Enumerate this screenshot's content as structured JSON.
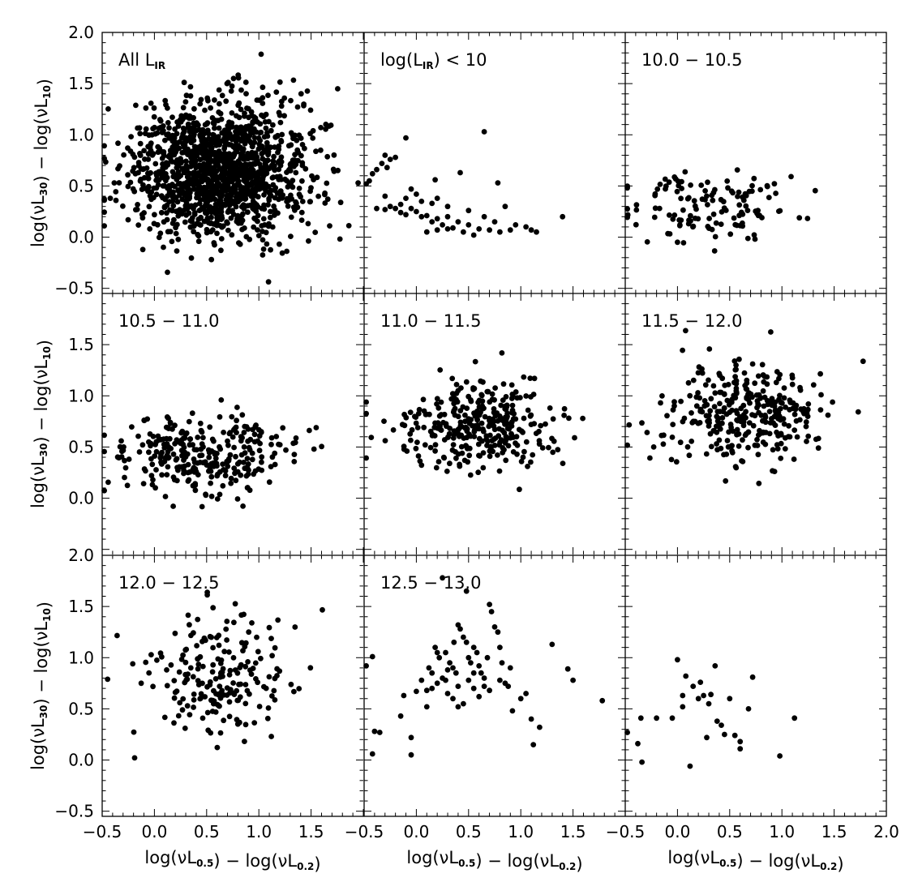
{
  "figure": {
    "xlabel": "log(νL0.5) − log(νL0.2)",
    "ylabel": "log(νL30) − log(νL10)",
    "xlim": [
      -0.5,
      2.0
    ],
    "ylim": [
      -0.55,
      2.0
    ],
    "x_ticks": [
      -0.5,
      0.0,
      0.5,
      1.0,
      1.5,
      2.0
    ],
    "y_ticks": [
      -0.5,
      0.0,
      0.5,
      1.0,
      1.5,
      2.0
    ],
    "x_tick_labels": [
      "−0.5",
      "0.0",
      "0.5",
      "1.0",
      "1.5",
      "2.0"
    ],
    "y_tick_labels": [
      "−0.5",
      "0.0",
      "0.5",
      "1.0",
      "1.5",
      "2.0"
    ],
    "point_color": "#000000"
  },
  "chart_data": [
    {
      "type": "scatter",
      "panel_label": "All L_IR",
      "n_points": 1400,
      "distribution": {
        "x_center": 0.62,
        "x_spread": 0.42,
        "y_center": 0.65,
        "y_spread": 0.33
      }
    },
    {
      "type": "scatter",
      "panel_label": "log(L_IR) < 10",
      "points": [
        [
          -0.45,
          0.55
        ],
        [
          -0.48,
          0.52
        ],
        [
          -0.42,
          0.62
        ],
        [
          -0.38,
          0.66
        ],
        [
          -0.33,
          0.72
        ],
        [
          -0.28,
          0.68
        ],
        [
          -0.25,
          0.76
        ],
        [
          -0.2,
          0.78
        ],
        [
          -0.3,
          0.8
        ],
        [
          -0.1,
          0.97
        ],
        [
          -0.38,
          0.28
        ],
        [
          -0.3,
          0.27
        ],
        [
          -0.25,
          0.3
        ],
        [
          -0.2,
          0.28
        ],
        [
          -0.15,
          0.24
        ],
        [
          -0.1,
          0.22
        ],
        [
          -0.05,
          0.28
        ],
        [
          0.0,
          0.25
        ],
        [
          0.05,
          0.2
        ],
        [
          0.1,
          0.21
        ],
        [
          0.15,
          0.15
        ],
        [
          0.2,
          0.18
        ],
        [
          0.25,
          0.12
        ],
        [
          0.3,
          0.08
        ],
        [
          -0.3,
          0.4
        ],
        [
          -0.15,
          0.32
        ],
        [
          -0.05,
          0.47
        ],
        [
          0.0,
          0.42
        ],
        [
          0.05,
          0.35
        ],
        [
          0.15,
          0.33
        ],
        [
          0.2,
          0.38
        ],
        [
          0.3,
          0.2
        ],
        [
          0.4,
          0.15
        ],
        [
          0.5,
          0.12
        ],
        [
          0.6,
          0.08
        ],
        [
          0.65,
          0.2
        ],
        [
          0.75,
          0.15
        ],
        [
          0.85,
          0.3
        ],
        [
          0.95,
          0.12
        ],
        [
          1.05,
          0.1
        ],
        [
          1.15,
          0.05
        ],
        [
          0.1,
          0.05
        ],
        [
          0.2,
          0.07
        ],
        [
          0.35,
          0.09
        ],
        [
          0.45,
          0.05
        ],
        [
          0.55,
          0.02
        ],
        [
          0.7,
          0.07
        ],
        [
          0.8,
          0.05
        ],
        [
          0.9,
          0.07
        ],
        [
          1.1,
          0.07
        ],
        [
          1.4,
          0.2
        ],
        [
          0.65,
          1.03
        ],
        [
          0.78,
          0.53
        ],
        [
          0.42,
          0.63
        ],
        [
          0.18,
          0.56
        ],
        [
          -0.1,
          0.38
        ],
        [
          0.3,
          0.3
        ],
        [
          0.5,
          0.26
        ]
      ]
    },
    {
      "type": "scatter",
      "panel_label": "10.0 − 10.5",
      "n_points": 130,
      "distribution": {
        "x_center": 0.3,
        "x_spread": 0.38,
        "y_center": 0.32,
        "y_spread": 0.17
      }
    },
    {
      "type": "scatter",
      "panel_label": "10.5 − 11.0",
      "n_points": 300,
      "distribution": {
        "x_center": 0.5,
        "x_spread": 0.42,
        "y_center": 0.45,
        "y_spread": 0.2
      }
    },
    {
      "type": "scatter",
      "panel_label": "11.0 − 11.5",
      "n_points": 330,
      "distribution": {
        "x_center": 0.6,
        "x_spread": 0.38,
        "y_center": 0.7,
        "y_spread": 0.22
      }
    },
    {
      "type": "scatter",
      "panel_label": "11.5 − 12.0",
      "n_points": 320,
      "distribution": {
        "x_center": 0.65,
        "x_spread": 0.38,
        "y_center": 0.82,
        "y_spread": 0.24
      }
    },
    {
      "type": "scatter",
      "panel_label": "12.0 − 12.5",
      "n_points": 200,
      "distribution": {
        "x_center": 0.65,
        "x_spread": 0.35,
        "y_center": 0.82,
        "y_spread": 0.3
      }
    },
    {
      "type": "scatter",
      "panel_label": "12.5 − 13.0",
      "points": [
        [
          -0.48,
          0.92
        ],
        [
          -0.42,
          1.01
        ],
        [
          -0.4,
          0.28
        ],
        [
          -0.35,
          0.27
        ],
        [
          -0.42,
          0.06
        ],
        [
          -0.05,
          0.22
        ],
        [
          -0.05,
          0.05
        ],
        [
          -0.15,
          0.43
        ],
        [
          -0.12,
          0.63
        ],
        [
          0.0,
          0.67
        ],
        [
          0.1,
          0.68
        ],
        [
          0.15,
          0.85
        ],
        [
          0.18,
          1.1
        ],
        [
          0.2,
          1.05
        ],
        [
          0.22,
          1.0
        ],
        [
          0.25,
          0.8
        ],
        [
          0.28,
          0.78
        ],
        [
          0.3,
          0.88
        ],
        [
          0.32,
          0.95
        ],
        [
          0.35,
          0.9
        ],
        [
          0.38,
          0.85
        ],
        [
          0.4,
          1.32
        ],
        [
          0.42,
          1.28
        ],
        [
          0.45,
          1.2
        ],
        [
          0.48,
          1.15
        ],
        [
          0.5,
          1.0
        ],
        [
          0.52,
          0.95
        ],
        [
          0.55,
          1.1
        ],
        [
          0.58,
          1.05
        ],
        [
          0.6,
          0.92
        ],
        [
          0.62,
          0.85
        ],
        [
          0.65,
          0.8
        ],
        [
          0.68,
          1.0
        ],
        [
          0.7,
          1.52
        ],
        [
          0.72,
          1.45
        ],
        [
          0.75,
          1.3
        ],
        [
          0.78,
          1.25
        ],
        [
          0.8,
          1.1
        ],
        [
          0.82,
          0.95
        ],
        [
          0.85,
          0.75
        ],
        [
          0.88,
          0.72
        ],
        [
          0.9,
          0.9
        ],
        [
          0.92,
          0.48
        ],
        [
          1.0,
          0.6
        ],
        [
          1.05,
          0.65
        ],
        [
          1.1,
          0.4
        ],
        [
          1.12,
          0.15
        ],
        [
          1.18,
          0.32
        ],
        [
          1.3,
          1.13
        ],
        [
          1.45,
          0.89
        ],
        [
          1.5,
          0.78
        ],
        [
          1.78,
          0.58
        ],
        [
          0.48,
          1.65
        ],
        [
          0.25,
          1.78
        ],
        [
          0.1,
          0.52
        ],
        [
          0.15,
          0.7
        ],
        [
          0.3,
          0.65
        ],
        [
          0.35,
          0.6
        ],
        [
          0.4,
          0.72
        ],
        [
          0.45,
          0.55
        ],
        [
          0.5,
          0.78
        ],
        [
          0.55,
          0.7
        ],
        [
          0.6,
          0.62
        ],
        [
          0.4,
          0.52
        ],
        [
          0.2,
          0.75
        ],
        [
          0.05,
          0.78
        ],
        [
          0.12,
          0.9
        ],
        [
          0.28,
          1.05
        ],
        [
          0.36,
          1.15
        ],
        [
          0.55,
          0.85
        ],
        [
          0.65,
          0.72
        ],
        [
          0.7,
          0.68
        ],
        [
          0.8,
          0.78
        ]
      ]
    },
    {
      "type": "scatter",
      "panel_label": "",
      "points": [
        [
          -0.48,
          0.27
        ],
        [
          -0.38,
          0.16
        ],
        [
          -0.35,
          0.41
        ],
        [
          -0.34,
          -0.02
        ],
        [
          -0.2,
          0.41
        ],
        [
          -0.05,
          0.41
        ],
        [
          0.0,
          0.98
        ],
        [
          0.05,
          0.52
        ],
        [
          0.05,
          0.63
        ],
        [
          0.08,
          0.82
        ],
        [
          0.12,
          -0.06
        ],
        [
          0.15,
          0.72
        ],
        [
          0.2,
          0.6
        ],
        [
          0.22,
          0.76
        ],
        [
          0.25,
          0.63
        ],
        [
          0.28,
          0.22
        ],
        [
          0.3,
          0.55
        ],
        [
          0.32,
          0.64
        ],
        [
          0.36,
          0.92
        ],
        [
          0.38,
          0.38
        ],
        [
          0.42,
          0.34
        ],
        [
          0.45,
          0.25
        ],
        [
          0.5,
          0.6
        ],
        [
          0.55,
          0.24
        ],
        [
          0.6,
          0.18
        ],
        [
          0.6,
          0.11
        ],
        [
          0.68,
          0.5
        ],
        [
          0.72,
          0.81
        ],
        [
          0.98,
          0.04
        ],
        [
          1.12,
          0.41
        ]
      ]
    }
  ]
}
